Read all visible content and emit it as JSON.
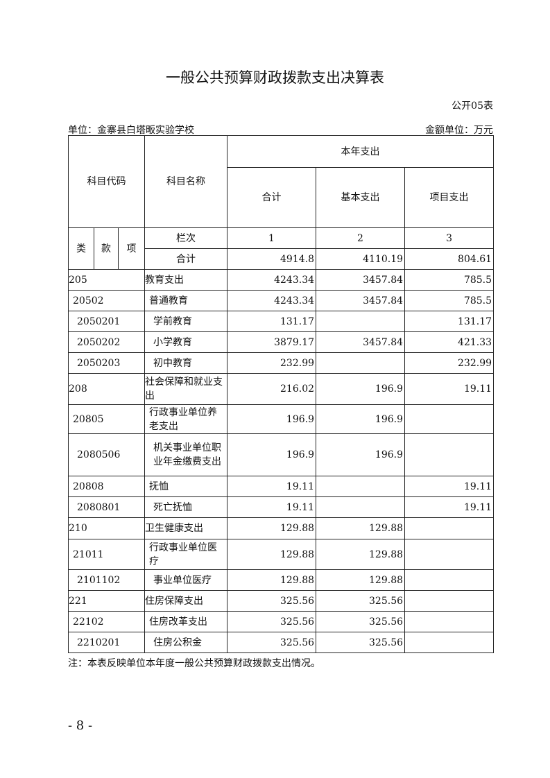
{
  "title": "一般公共预算财政拨款支出决算表",
  "form_no": "公开05表",
  "unit": "单位：金寨县白塔畈实验学校",
  "money_unit": "金额单位：万元",
  "header": {
    "code": "科目代码",
    "name": "科目名称",
    "year_expense": "本年支出",
    "total": "合计",
    "basic": "基本支出",
    "project": "项目支出",
    "lei": "类",
    "kuan": "款",
    "xiang": "项",
    "lanci": "栏次",
    "col1": "1",
    "col2": "2",
    "col3": "3",
    "sum_label": "合计",
    "sum_total": "4914.8",
    "sum_basic": "4110.19",
    "sum_project": "804.61"
  },
  "rows": [
    {
      "code": "205",
      "name": "教育支出",
      "total": "4243.34",
      "basic": "3457.84",
      "project": "785.5",
      "level": 0
    },
    {
      "code": "20502",
      "name": "普通教育",
      "total": "4243.34",
      "basic": "3457.84",
      "project": "785.5",
      "level": 1
    },
    {
      "code": "2050201",
      "name": "学前教育",
      "total": "131.17",
      "basic": "",
      "project": "131.17",
      "level": 2
    },
    {
      "code": "2050202",
      "name": "小学教育",
      "total": "3879.17",
      "basic": "3457.84",
      "project": "421.33",
      "level": 2
    },
    {
      "code": "2050203",
      "name": "初中教育",
      "total": "232.99",
      "basic": "",
      "project": "232.99",
      "level": 2
    },
    {
      "code": "208",
      "name": "社会保障和就业支出",
      "total": "216.02",
      "basic": "196.9",
      "project": "19.11",
      "level": 0
    },
    {
      "code": "20805",
      "name": "行政事业单位养老支出",
      "total": "196.9",
      "basic": "196.9",
      "project": "",
      "level": 1
    },
    {
      "code": "2080506",
      "name": "机关事业单位职业年金缴费支出",
      "total": "196.9",
      "basic": "196.9",
      "project": "",
      "level": 2
    },
    {
      "code": "20808",
      "name": "抚恤",
      "total": "19.11",
      "basic": "",
      "project": "19.11",
      "level": 1
    },
    {
      "code": "2080801",
      "name": "死亡抚恤",
      "total": "19.11",
      "basic": "",
      "project": "19.11",
      "level": 2
    },
    {
      "code": "210",
      "name": "卫生健康支出",
      "total": "129.88",
      "basic": "129.88",
      "project": "",
      "level": 0
    },
    {
      "code": "21011",
      "name": "行政事业单位医疗",
      "total": "129.88",
      "basic": "129.88",
      "project": "",
      "level": 1
    },
    {
      "code": "2101102",
      "name": "事业单位医疗",
      "total": "129.88",
      "basic": "129.88",
      "project": "",
      "level": 2
    },
    {
      "code": "221",
      "name": "住房保障支出",
      "total": "325.56",
      "basic": "325.56",
      "project": "",
      "level": 0
    },
    {
      "code": "22102",
      "name": "住房改革支出",
      "total": "325.56",
      "basic": "325.56",
      "project": "",
      "level": 1
    },
    {
      "code": "2210201",
      "name": "住房公积金",
      "total": "325.56",
      "basic": "325.56",
      "project": "",
      "level": 2
    }
  ],
  "note": "注：本表反映单位本年度一般公共预算财政拨款支出情况。",
  "page_number": "- 8 -"
}
